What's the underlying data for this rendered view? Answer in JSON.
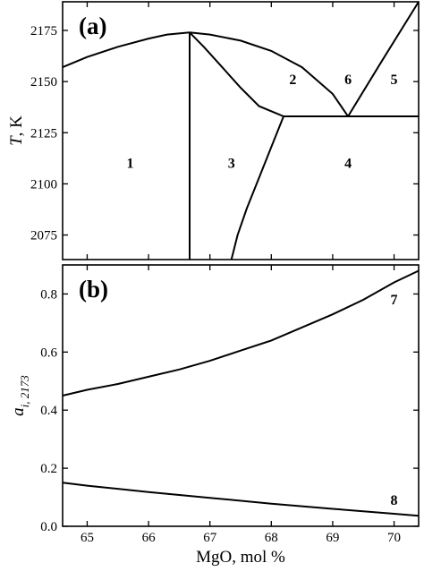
{
  "chart_data": [
    {
      "panel_label": "(a)",
      "type": "line",
      "ylabel_italic": "T",
      "ylabel_rest": ", K",
      "xlim": [
        64.6,
        70.4
      ],
      "ylim": [
        2063,
        2189
      ],
      "yticks": [
        "2075",
        "2100",
        "2125",
        "2150",
        "2175"
      ],
      "xticks": [
        "65",
        "66",
        "67",
        "68",
        "69",
        "70"
      ],
      "series": [
        {
          "values": [
            [
              64.6,
              2157
            ],
            [
              65.0,
              2162
            ],
            [
              65.5,
              2167
            ],
            [
              66.0,
              2171
            ],
            [
              66.3,
              2173
            ],
            [
              66.67,
              2174
            ]
          ]
        },
        {
          "values": [
            [
              66.67,
              2174
            ],
            [
              67.0,
              2173
            ],
            [
              67.5,
              2170
            ],
            [
              68.0,
              2165
            ],
            [
              68.5,
              2157
            ],
            [
              69.0,
              2144
            ],
            [
              69.25,
              2133
            ]
          ]
        },
        {
          "values": [
            [
              66.67,
              2174
            ],
            [
              66.9,
              2167
            ],
            [
              67.2,
              2157
            ],
            [
              67.5,
              2147
            ],
            [
              67.8,
              2138
            ],
            [
              68.2,
              2133
            ]
          ]
        },
        {
          "values": [
            [
              69.25,
              2133
            ],
            [
              69.8,
              2160
            ],
            [
              70.4,
              2189
            ]
          ]
        },
        {
          "values": [
            [
              68.2,
              2133
            ],
            [
              70.4,
              2133
            ]
          ]
        },
        {
          "values": [
            [
              66.67,
              2174
            ],
            [
              66.67,
              2063
            ]
          ]
        },
        {
          "values": [
            [
              68.2,
              2133
            ],
            [
              68.0,
              2118
            ],
            [
              67.8,
              2103
            ],
            [
              67.6,
              2088
            ],
            [
              67.45,
              2075
            ],
            [
              67.35,
              2063
            ]
          ]
        }
      ],
      "region_labels": [
        {
          "text": "1",
          "x": 65.7,
          "y": 2110
        },
        {
          "text": "2",
          "x": 68.35,
          "y": 2151
        },
        {
          "text": "3",
          "x": 67.35,
          "y": 2110
        },
        {
          "text": "4",
          "x": 69.25,
          "y": 2110
        },
        {
          "text": "5",
          "x": 70.0,
          "y": 2151
        },
        {
          "text": "6",
          "x": 69.25,
          "y": 2151
        }
      ]
    },
    {
      "panel_label": "(b)",
      "type": "line",
      "ylabel_main": "a",
      "ylabel_sub": "i, 2173",
      "xlabel": "MgO, mol %",
      "xlim": [
        64.6,
        70.4
      ],
      "ylim": [
        0,
        0.9
      ],
      "yticks": [
        "0.0",
        "0.2",
        "0.4",
        "0.6",
        "0.8"
      ],
      "xticks": [
        "65",
        "66",
        "67",
        "68",
        "69",
        "70"
      ],
      "series": [
        {
          "name": "7",
          "values": [
            [
              64.6,
              0.45
            ],
            [
              65.0,
              0.47
            ],
            [
              65.5,
              0.49
            ],
            [
              66.0,
              0.515
            ],
            [
              66.5,
              0.54
            ],
            [
              67.0,
              0.57
            ],
            [
              67.5,
              0.605
            ],
            [
              68.0,
              0.64
            ],
            [
              68.5,
              0.685
            ],
            [
              69.0,
              0.73
            ],
            [
              69.5,
              0.78
            ],
            [
              70.0,
              0.84
            ],
            [
              70.4,
              0.88
            ]
          ]
        },
        {
          "name": "8",
          "values": [
            [
              64.6,
              0.15
            ],
            [
              65.0,
              0.14
            ],
            [
              66.0,
              0.118
            ],
            [
              67.0,
              0.098
            ],
            [
              68.0,
              0.078
            ],
            [
              69.0,
              0.06
            ],
            [
              70.0,
              0.043
            ],
            [
              70.4,
              0.036
            ]
          ]
        }
      ],
      "series_labels": [
        {
          "text": "7",
          "x": 70.0,
          "y": 0.78
        },
        {
          "text": "8",
          "x": 70.0,
          "y": 0.09
        }
      ]
    }
  ]
}
